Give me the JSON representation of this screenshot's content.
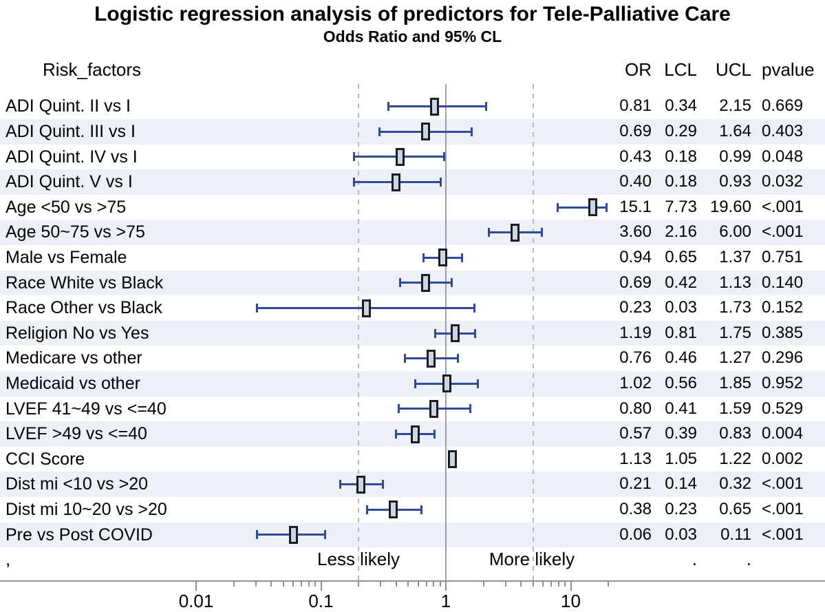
{
  "title": "Logistic regression analysis of predictors for Tele-Palliative Care",
  "subtitle": "Odds Ratio and 95% CL",
  "table": {
    "risk_factors_header": "Risk_factors",
    "col_headers": [
      "OR",
      "LCL",
      "UCL",
      "pvalue"
    ]
  },
  "footer": {
    "comma": ",",
    "less_label": "Less likely",
    "more_label": "More likely",
    "lcl_dot": ".",
    "ucl_dot": "."
  },
  "chart_data": {
    "type": "forest",
    "title": "Logistic regression analysis of predictors for Tele-Palliative Care",
    "subtitle": "Odds Ratio and 95% CL",
    "x_axis": {
      "scale": "log",
      "major_ticks": [
        0.01,
        0.1,
        1,
        10
      ],
      "major_tick_labels": [
        "0.01",
        "0.1",
        "1",
        "10"
      ],
      "minor_ticks": [
        0.02,
        0.03,
        0.04,
        0.05,
        0.06,
        0.07,
        0.08,
        0.09,
        0.2,
        0.3,
        0.4,
        0.5,
        0.6,
        0.7,
        0.8,
        0.9,
        2,
        3,
        4,
        5,
        6,
        7,
        8,
        9,
        20
      ],
      "reference_line": 1,
      "dashed_reference_lines": [
        0.2,
        5
      ]
    },
    "annotations": {
      "left_region": "Less likely",
      "right_region": "More likely"
    },
    "rows": [
      {
        "label": "ADI Quint. II vs I",
        "or": "0.81",
        "lcl": "0.34",
        "ucl": "2.15",
        "pvalue": "0.669"
      },
      {
        "label": "ADI Quint. III vs I",
        "or": "0.69",
        "lcl": "0.29",
        "ucl": "1.64",
        "pvalue": "0.403"
      },
      {
        "label": "ADI Quint. IV vs I",
        "or": "0.43",
        "lcl": "0.18",
        "ucl": "0.99",
        "pvalue": "0.048"
      },
      {
        "label": "ADI Quint. V vs I",
        "or": "0.40",
        "lcl": "0.18",
        "ucl": "0.93",
        "pvalue": "0.032"
      },
      {
        "label": "Age <50 vs >75",
        "or": "15.1",
        "lcl": "7.73",
        "ucl": "19.60",
        "pvalue": "<.001"
      },
      {
        "label": "Age 50~75 vs >75",
        "or": "3.60",
        "lcl": "2.16",
        "ucl": "6.00",
        "pvalue": "<.001"
      },
      {
        "label": "Male vs Female",
        "or": "0.94",
        "lcl": "0.65",
        "ucl": "1.37",
        "pvalue": "0.751"
      },
      {
        "label": "Race White vs Black",
        "or": "0.69",
        "lcl": "0.42",
        "ucl": "1.13",
        "pvalue": "0.140"
      },
      {
        "label": "Race Other vs Black",
        "or": "0.23",
        "lcl": "0.03",
        "ucl": "1.73",
        "pvalue": "0.152"
      },
      {
        "label": "Religion No vs Yes",
        "or": "1.19",
        "lcl": "0.81",
        "ucl": "1.75",
        "pvalue": "0.385"
      },
      {
        "label": "Medicare vs other",
        "or": "0.76",
        "lcl": "0.46",
        "ucl": "1.27",
        "pvalue": "0.296"
      },
      {
        "label": "Medicaid vs other",
        "or": "1.02",
        "lcl": "0.56",
        "ucl": "1.85",
        "pvalue": "0.952"
      },
      {
        "label": "LVEF 41~49 vs <=40",
        "or": "0.80",
        "lcl": "0.41",
        "ucl": "1.59",
        "pvalue": "0.529"
      },
      {
        "label": "LVEF >49 vs <=40",
        "or": "0.57",
        "lcl": "0.39",
        "ucl": "0.83",
        "pvalue": "0.004"
      },
      {
        "label": "CCI Score",
        "or": "1.13",
        "lcl": "1.05",
        "ucl": "1.22",
        "pvalue": "0.002"
      },
      {
        "label": "Dist mi <10 vs >20",
        "or": "0.21",
        "lcl": "0.14",
        "ucl": "0.32",
        "pvalue": "<.001"
      },
      {
        "label": "Dist mi 10~20 vs >20",
        "or": "0.38",
        "lcl": "0.23",
        "ucl": "0.65",
        "pvalue": "<.001"
      },
      {
        "label": "Pre vs Post COVID",
        "or": "0.06",
        "lcl": "0.03",
        "ucl": "0.11",
        "pvalue": "<.001"
      }
    ]
  },
  "colors": {
    "ci_line": "#2d4a9b",
    "marker_fill": "#ccd5e2",
    "marker_border": "#1b1b22",
    "stripe": "#edf0f7",
    "reference_line": "#9aa0a8",
    "dashed_line": "#b6b9c0",
    "axis_line": "#8a8f96",
    "text": "#000000"
  }
}
